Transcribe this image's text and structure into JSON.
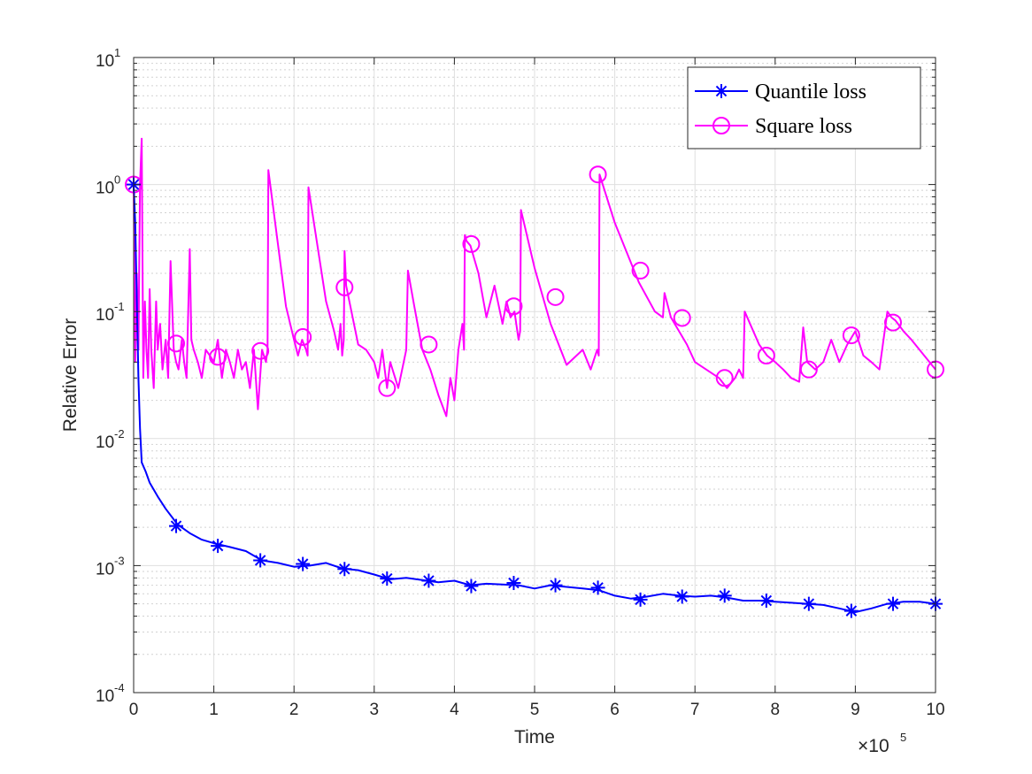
{
  "chart_data": {
    "type": "line",
    "title": "",
    "xlabel": "Time",
    "ylabel": "Relative Error",
    "x_scale": "linear",
    "y_scale": "log",
    "xlim": [
      0,
      10
    ],
    "ylim": [
      0.0001,
      10
    ],
    "x_multiplier": {
      "base": "×10",
      "exponent": "5"
    },
    "x_ticks": [
      0,
      1,
      2,
      3,
      4,
      5,
      6,
      7,
      8,
      9,
      10
    ],
    "x_tick_labels": [
      "0",
      "1",
      "2",
      "3",
      "4",
      "5",
      "6",
      "7",
      "8",
      "9",
      "10"
    ],
    "y_ticks": [
      0.0001,
      0.001,
      0.01,
      0.1,
      1,
      10
    ],
    "y_tick_labels": [
      {
        "base": "10",
        "exponent": "-4"
      },
      {
        "base": "10",
        "exponent": "-3"
      },
      {
        "base": "10",
        "exponent": "-2"
      },
      {
        "base": "10",
        "exponent": "-1"
      },
      {
        "base": "10",
        "exponent": "0"
      },
      {
        "base": "10",
        "exponent": "1"
      }
    ],
    "grid": true,
    "minor_grid": true,
    "legend_position": "top-right",
    "series": [
      {
        "name": "Quantile loss",
        "color": "#0000ff",
        "marker": "asterisk",
        "line_x": [
          0,
          0.02,
          0.04,
          0.06,
          0.08,
          0.1,
          0.15,
          0.2,
          0.3,
          0.4,
          0.55,
          0.7,
          0.85,
          1.0,
          1.2,
          1.4,
          1.6,
          1.8,
          2.0,
          2.2,
          2.4,
          2.6,
          2.8,
          3.0,
          3.2,
          3.4,
          3.6,
          3.8,
          4.0,
          4.2,
          4.4,
          4.6,
          4.8,
          5.0,
          5.2,
          5.4,
          5.6,
          5.8,
          6.0,
          6.2,
          6.4,
          6.6,
          6.8,
          7.0,
          7.2,
          7.4,
          7.6,
          7.8,
          8.0,
          8.2,
          8.4,
          8.6,
          8.8,
          9.0,
          9.2,
          9.4,
          9.6,
          9.8,
          10.0
        ],
        "line_y": [
          1.0,
          0.5,
          0.12,
          0.03,
          0.012,
          0.0065,
          0.0055,
          0.0045,
          0.0035,
          0.0028,
          0.0021,
          0.0018,
          0.0016,
          0.0015,
          0.0014,
          0.0013,
          0.0011,
          0.00105,
          0.00098,
          0.001,
          0.00105,
          0.00095,
          0.00092,
          0.00085,
          0.00078,
          0.0008,
          0.00077,
          0.00074,
          0.00076,
          0.0007,
          0.00072,
          0.00071,
          0.0007,
          0.00066,
          0.0007,
          0.00068,
          0.00066,
          0.00064,
          0.00058,
          0.00055,
          0.00057,
          0.0006,
          0.00058,
          0.00057,
          0.00058,
          0.00056,
          0.00053,
          0.00053,
          0.00052,
          0.00051,
          0.0005,
          0.00049,
          0.00046,
          0.00043,
          0.00046,
          0.0005,
          0.00052,
          0.00052,
          0.0005
        ],
        "marker_x": [
          0,
          0.53,
          1.05,
          1.58,
          2.11,
          2.63,
          3.16,
          3.68,
          4.21,
          4.74,
          5.26,
          5.79,
          6.32,
          6.84,
          7.37,
          7.89,
          8.42,
          8.95,
          9.47,
          10.0
        ],
        "marker_y": [
          1.0,
          0.00205,
          0.00143,
          0.0011,
          0.00103,
          0.00094,
          0.00079,
          0.00076,
          0.00069,
          0.00073,
          0.0007,
          0.00067,
          0.00054,
          0.00057,
          0.00058,
          0.00053,
          0.0005,
          0.00044,
          0.0005,
          0.0005
        ]
      },
      {
        "name": "Square loss",
        "color": "#ff00ff",
        "marker": "circle",
        "line_x": [
          0,
          0.02,
          0.04,
          0.06,
          0.08,
          0.1,
          0.12,
          0.14,
          0.16,
          0.18,
          0.2,
          0.22,
          0.25,
          0.28,
          0.3,
          0.33,
          0.36,
          0.4,
          0.43,
          0.46,
          0.5,
          0.53,
          0.56,
          0.6,
          0.63,
          0.66,
          0.7,
          0.72,
          0.75,
          0.8,
          0.85,
          0.9,
          0.95,
          1.0,
          1.05,
          1.1,
          1.15,
          1.2,
          1.25,
          1.3,
          1.35,
          1.4,
          1.45,
          1.5,
          1.55,
          1.6,
          1.65,
          1.67,
          1.68,
          1.9,
          2.0,
          2.05,
          2.1,
          2.15,
          2.17,
          2.18,
          2.4,
          2.5,
          2.55,
          2.58,
          2.6,
          2.62,
          2.63,
          2.65,
          2.8,
          2.9,
          3.0,
          3.05,
          3.1,
          3.16,
          3.2,
          3.3,
          3.4,
          3.42,
          3.5,
          3.6,
          3.7,
          3.8,
          3.9,
          3.95,
          4.0,
          4.05,
          4.1,
          4.12,
          4.13,
          4.15,
          4.2,
          4.3,
          4.4,
          4.5,
          4.6,
          4.65,
          4.7,
          4.75,
          4.8,
          4.82,
          4.83,
          5.0,
          5.2,
          5.4,
          5.6,
          5.7,
          5.78,
          5.8,
          5.81,
          6.0,
          6.3,
          6.5,
          6.6,
          6.62,
          6.7,
          6.9,
          7.0,
          7.3,
          7.4,
          7.5,
          7.55,
          7.6,
          7.62,
          7.8,
          7.9,
          8.0,
          8.1,
          8.2,
          8.3,
          8.35,
          8.4,
          8.5,
          8.6,
          8.7,
          8.8,
          8.9,
          9.0,
          9.1,
          9.2,
          9.3,
          9.4,
          9.45,
          9.5,
          9.6,
          9.7,
          9.8,
          10.0
        ],
        "line_y": [
          1.0,
          0.04,
          0.2,
          0.05,
          1.0,
          2.3,
          0.03,
          0.12,
          0.05,
          0.03,
          0.15,
          0.05,
          0.025,
          0.12,
          0.05,
          0.08,
          0.035,
          0.06,
          0.03,
          0.25,
          0.05,
          0.04,
          0.035,
          0.06,
          0.04,
          0.03,
          0.31,
          0.06,
          0.05,
          0.04,
          0.03,
          0.05,
          0.045,
          0.04,
          0.06,
          0.03,
          0.05,
          0.04,
          0.03,
          0.05,
          0.035,
          0.04,
          0.025,
          0.05,
          0.017,
          0.05,
          0.04,
          0.05,
          1.3,
          0.11,
          0.06,
          0.045,
          0.06,
          0.05,
          0.045,
          0.95,
          0.12,
          0.07,
          0.05,
          0.08,
          0.045,
          0.06,
          0.3,
          0.16,
          0.055,
          0.05,
          0.04,
          0.03,
          0.05,
          0.025,
          0.04,
          0.025,
          0.05,
          0.21,
          0.11,
          0.05,
          0.035,
          0.022,
          0.015,
          0.03,
          0.02,
          0.05,
          0.08,
          0.05,
          0.4,
          0.36,
          0.33,
          0.2,
          0.09,
          0.16,
          0.08,
          0.12,
          0.09,
          0.1,
          0.06,
          0.07,
          0.63,
          0.22,
          0.08,
          0.038,
          0.05,
          0.035,
          0.05,
          0.045,
          1.2,
          0.5,
          0.17,
          0.1,
          0.09,
          0.14,
          0.09,
          0.055,
          0.04,
          0.03,
          0.025,
          0.03,
          0.035,
          0.03,
          0.1,
          0.055,
          0.045,
          0.04,
          0.035,
          0.03,
          0.028,
          0.075,
          0.04,
          0.035,
          0.04,
          0.06,
          0.04,
          0.055,
          0.07,
          0.045,
          0.04,
          0.035,
          0.1,
          0.09,
          0.085,
          0.07,
          0.06,
          0.05,
          0.035
        ],
        "marker_x": [
          0,
          0.53,
          1.05,
          1.58,
          2.11,
          2.63,
          3.16,
          3.68,
          4.21,
          4.74,
          5.26,
          5.79,
          6.32,
          6.84,
          7.37,
          7.89,
          8.42,
          8.95,
          9.47,
          10.0
        ],
        "marker_y": [
          1.0,
          0.056,
          0.044,
          0.049,
          0.063,
          0.155,
          0.025,
          0.055,
          0.34,
          0.11,
          0.13,
          1.2,
          0.21,
          0.089,
          0.03,
          0.045,
          0.035,
          0.065,
          0.082,
          0.035
        ]
      }
    ]
  }
}
